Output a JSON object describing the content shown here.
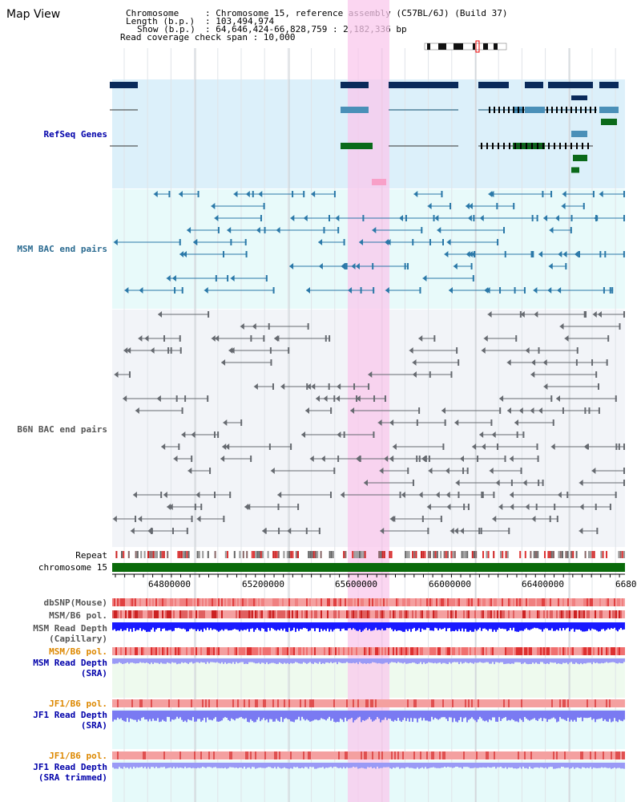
{
  "title": "Map View",
  "header": {
    "chromosome_key": "Chromosome",
    "chromosome_val": ": Chromosome 15, reference assembly (C57BL/6J) (Build 37)",
    "length_key": "Length (b.p.)",
    "length_val": ": 103,494,974",
    "show_key": "Show (b.p.)",
    "show_val": ": 64,646,424-66,828,759 : 2,182,336 bp",
    "coverage": "Read coverage check span : 10,000"
  },
  "tracks": {
    "refseq": "RefSeq Genes",
    "msm_bac": "MSM BAC end pairs",
    "b6n_bac": "B6N BAC end pairs",
    "repeat": "Repeat",
    "chromosome": "chromosome 15",
    "dbsnp": "dbSNP(Mouse)",
    "msm_b6_pol": "MSM/B6 pol.",
    "msm_depth_cap_1": "MSM Read Depth",
    "msm_depth_cap_2": "(Capillary)",
    "msm_b6_pol2": "MSM/B6 pol.",
    "msm_depth_sra_1": "MSM Read Depth",
    "msm_depth_sra_2": "(SRA)",
    "jf1_pol": "JF1/B6 pol.",
    "jf1_depth_1": "JF1 Read Depth",
    "jf1_depth_2": "(SRA)",
    "jf1_pol2": "JF1/B6 pol.",
    "jf1_trim_1": "JF1 Read Depth",
    "jf1_trim_2": "(SRA trimmed)"
  },
  "axis": {
    "ticks": [
      "64800000",
      "65200000",
      "65600000",
      "66000000",
      "66400000",
      "6680"
    ]
  },
  "colors": {
    "refseq_label": "#0000aa",
    "msm_label": "#2a6a90",
    "b6n_label": "#555555",
    "pol_label": "#dd8800",
    "depth_label": "#0000aa",
    "highlight": "#f9d6f0"
  }
}
